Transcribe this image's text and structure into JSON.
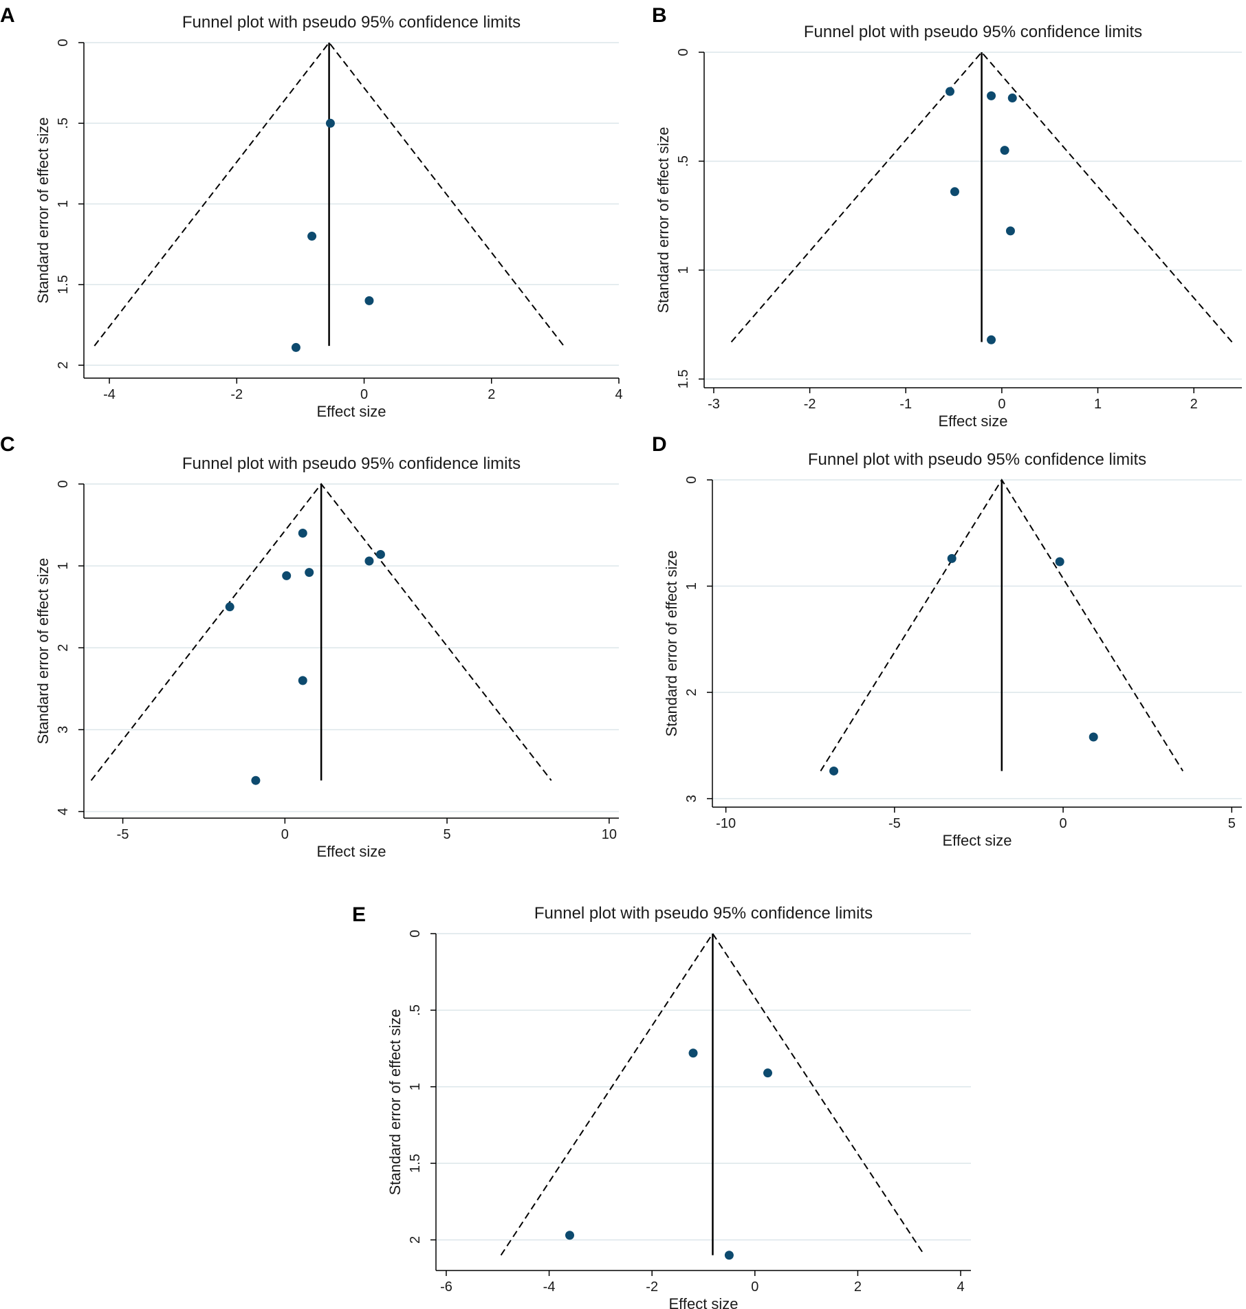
{
  "chart_data": [
    {
      "panel": "A",
      "type": "scatter",
      "title": "Funnel plot with pseudo 95% confidence limits",
      "xlabel": "Effect size",
      "ylabel": "Standard error of effect size",
      "xlim": [
        -4.4,
        4.0
      ],
      "ylim": [
        0,
        2.08
      ],
      "xticks": [
        -4,
        -2,
        0,
        2,
        4
      ],
      "xtick_labels": [
        "-4",
        "-2",
        "0",
        "2",
        "4"
      ],
      "yticks": [
        0,
        0.5,
        1,
        1.5,
        2
      ],
      "ytick_labels": [
        "0",
        ".5",
        "1",
        "1.5",
        "2"
      ],
      "pooled_effect": -0.55,
      "max_se": 1.88,
      "points": [
        {
          "x": -0.53,
          "y": 0.5
        },
        {
          "x": -0.82,
          "y": 1.2
        },
        {
          "x": 0.08,
          "y": 1.6
        },
        {
          "x": -1.07,
          "y": 1.89
        }
      ]
    },
    {
      "panel": "B",
      "type": "scatter",
      "title": "Funnel plot with pseudo 95% confidence limits",
      "xlabel": "Effect size",
      "ylabel": "Standard error of effect size",
      "xlim": [
        -3.1,
        2.5
      ],
      "ylim": [
        0,
        1.54
      ],
      "xticks": [
        -3,
        -2,
        -1,
        0,
        1,
        2
      ],
      "xtick_labels": [
        "-3",
        "-2",
        "-1",
        "0",
        "1",
        "2"
      ],
      "yticks": [
        0,
        0.5,
        1,
        1.5
      ],
      "ytick_labels": [
        "0",
        ".5",
        "1",
        "1.5"
      ],
      "pooled_effect": -0.21,
      "max_se": 1.33,
      "points": [
        {
          "x": -0.54,
          "y": 0.18
        },
        {
          "x": -0.11,
          "y": 0.2
        },
        {
          "x": 0.11,
          "y": 0.21
        },
        {
          "x": 0.03,
          "y": 0.45
        },
        {
          "x": -0.49,
          "y": 0.64
        },
        {
          "x": 0.09,
          "y": 0.82
        },
        {
          "x": -0.11,
          "y": 1.32
        }
      ]
    },
    {
      "panel": "C",
      "type": "scatter",
      "title": "Funnel plot with pseudo 95% confidence limits",
      "xlabel": "Effect size",
      "ylabel": "Standard error of effect size",
      "xlim": [
        -6.2,
        10.3
      ],
      "ylim": [
        0,
        4.08
      ],
      "xticks": [
        -5,
        0,
        5,
        10
      ],
      "xtick_labels": [
        "-5",
        "0",
        "5",
        "10"
      ],
      "yticks": [
        0,
        1,
        2,
        3,
        4
      ],
      "ytick_labels": [
        "0",
        "1",
        "2",
        "3",
        "4"
      ],
      "pooled_effect": 1.12,
      "max_se": 3.62,
      "points": [
        {
          "x": 0.55,
          "y": 0.6
        },
        {
          "x": 2.95,
          "y": 0.86
        },
        {
          "x": 2.6,
          "y": 0.94
        },
        {
          "x": 0.75,
          "y": 1.08
        },
        {
          "x": 0.05,
          "y": 1.12
        },
        {
          "x": -1.7,
          "y": 1.5
        },
        {
          "x": 0.55,
          "y": 2.4
        },
        {
          "x": -0.9,
          "y": 3.62
        }
      ]
    },
    {
      "panel": "D",
      "type": "scatter",
      "title": "Funnel plot with pseudo 95% confidence limits",
      "xlabel": "Effect size",
      "ylabel": "Standard error of effect size",
      "xlim": [
        -10.4,
        5.3
      ],
      "ylim": [
        0,
        3.08
      ],
      "xticks": [
        -10,
        -5,
        0,
        5
      ],
      "xtick_labels": [
        "-10",
        "-5",
        "0",
        "5"
      ],
      "yticks": [
        0,
        1,
        2,
        3
      ],
      "ytick_labels": [
        "0",
        "1",
        "2",
        "3"
      ],
      "pooled_effect": -1.82,
      "max_se": 2.74,
      "points": [
        {
          "x": -3.3,
          "y": 0.74
        },
        {
          "x": -0.1,
          "y": 0.77
        },
        {
          "x": 0.9,
          "y": 2.42
        },
        {
          "x": -6.8,
          "y": 2.74
        }
      ]
    },
    {
      "panel": "E",
      "type": "scatter",
      "title": "Funnel plot with pseudo 95% confidence limits",
      "xlabel": "Effect size",
      "ylabel": "Standard error of effect size",
      "xlim": [
        -6.2,
        4.2
      ],
      "ylim": [
        0,
        2.2
      ],
      "xticks": [
        -6,
        -4,
        -2,
        0,
        2,
        4
      ],
      "xtick_labels": [
        "-6",
        "-4",
        "-2",
        "0",
        "2",
        "4"
      ],
      "yticks": [
        0,
        0.5,
        1,
        1.5,
        2
      ],
      "ytick_labels": [
        "0",
        ".5",
        "1",
        "1.5",
        "2"
      ],
      "pooled_effect": -0.82,
      "max_se": 2.1,
      "points": [
        {
          "x": -1.2,
          "y": 0.78
        },
        {
          "x": 0.25,
          "y": 0.91
        },
        {
          "x": -3.6,
          "y": 1.97
        },
        {
          "x": -0.5,
          "y": 2.1
        }
      ]
    }
  ]
}
